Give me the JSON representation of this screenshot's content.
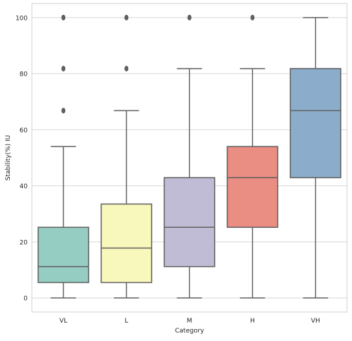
{
  "chart_data": {
    "type": "box",
    "xlabel": "Category",
    "ylabel": "Stability(%) IU",
    "ylim": [
      -5,
      105
    ],
    "yticks": [
      0,
      20,
      40,
      60,
      80,
      100
    ],
    "grid": true,
    "categories": [
      "VL",
      "L",
      "M",
      "H",
      "VH"
    ],
    "boxes": [
      {
        "category": "VL",
        "color": "#95cdc3",
        "whisker_low": 0,
        "q1": 5.5,
        "median": 11.2,
        "q3": 25.2,
        "whisker_high": 54,
        "outliers": [
          66.8,
          81.8,
          100
        ]
      },
      {
        "category": "L",
        "color": "#f8f8bc",
        "whisker_low": 0,
        "q1": 5.5,
        "median": 17.8,
        "q3": 33.5,
        "whisker_high": 66.8,
        "outliers": [
          81.8,
          100
        ]
      },
      {
        "category": "M",
        "color": "#c0bcd5",
        "whisker_low": 0,
        "q1": 11.2,
        "median": 25.2,
        "q3": 42.9,
        "whisker_high": 81.8,
        "outliers": [
          100
        ]
      },
      {
        "category": "H",
        "color": "#ea8d82",
        "whisker_low": 0,
        "q1": 25.2,
        "median": 42.9,
        "q3": 54,
        "whisker_high": 81.8,
        "outliers": [
          100
        ]
      },
      {
        "category": "VH",
        "color": "#8badcb",
        "whisker_low": 0,
        "q1": 42.9,
        "median": 66.8,
        "q3": 81.8,
        "whisker_high": 100,
        "outliers": []
      }
    ]
  }
}
